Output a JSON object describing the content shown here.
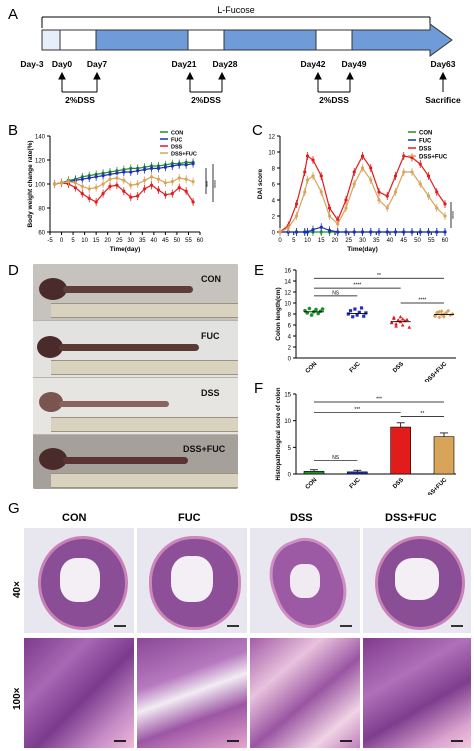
{
  "panel_labels": {
    "a": "A",
    "b": "B",
    "c": "C",
    "d": "D",
    "e": "E",
    "f": "F",
    "g": "G"
  },
  "timeline": {
    "treatment": "L-Fucose",
    "days": [
      "Day-3",
      "Day0",
      "Day7",
      "Day21",
      "Day28",
      "Day42",
      "Day49",
      "Day63"
    ],
    "dss": [
      "2%DSS",
      "2%DSS",
      "2%DSS"
    ],
    "end": "Sacrifice"
  },
  "legend": [
    "CON",
    "FUC",
    "DSS",
    "DSS+FUC"
  ],
  "colors": {
    "con": "#1f8f2b",
    "fuc": "#1f2fb8",
    "dss": "#e21b1b",
    "dssfuc": "#d7a45a",
    "bar_blue": "#6f9bd8"
  },
  "panel_d": {
    "labels": [
      "CON",
      "FUC",
      "DSS",
      "DSS+FUC"
    ]
  },
  "panel_g": {
    "columns": [
      "CON",
      "FUC",
      "DSS",
      "DSS+FUC"
    ],
    "rows": [
      "40×",
      "100×"
    ]
  },
  "chart_data": [
    {
      "type": "line",
      "xlabel": "Time(day)",
      "ylabel": "Body weight change rate(%)",
      "xlim": [
        -5,
        60
      ],
      "ylim": [
        60,
        140
      ],
      "xticks": [
        -5,
        0,
        5,
        10,
        15,
        20,
        25,
        30,
        35,
        40,
        45,
        50,
        55,
        60
      ],
      "yticks": [
        60,
        80,
        100,
        120,
        140
      ],
      "x": [
        -3,
        0,
        3,
        6,
        9,
        12,
        15,
        18,
        21,
        24,
        27,
        30,
        33,
        36,
        39,
        42,
        45,
        48,
        51,
        54,
        57
      ],
      "series": [
        {
          "name": "CON",
          "values": [
            100,
            101,
            103,
            104,
            106,
            107,
            108,
            109,
            110,
            111,
            112,
            113,
            113,
            114,
            115,
            115,
            116,
            117,
            117,
            118,
            118
          ]
        },
        {
          "name": "FUC",
          "values": [
            100,
            101,
            102,
            103,
            104,
            105,
            106,
            107,
            108,
            109,
            110,
            110,
            111,
            112,
            113,
            113,
            114,
            115,
            116,
            116,
            117
          ]
        },
        {
          "name": "DSS",
          "values": [
            100,
            101,
            100,
            97,
            92,
            88,
            85,
            92,
            98,
            99,
            94,
            89,
            90,
            96,
            99,
            95,
            91,
            92,
            97,
            94,
            85
          ]
        },
        {
          "name": "DSS+FUC",
          "values": [
            100,
            101,
            102,
            101,
            98,
            96,
            97,
            100,
            104,
            105,
            103,
            99,
            100,
            103,
            106,
            104,
            101,
            102,
            105,
            104,
            102
          ]
        }
      ],
      "annotations": [
        "***",
        "****"
      ]
    },
    {
      "type": "line",
      "xlabel": "Time(day)",
      "ylabel": "DAI score",
      "xlim": [
        0,
        60
      ],
      "ylim": [
        0,
        12
      ],
      "xticks": [
        0,
        5,
        10,
        15,
        20,
        25,
        30,
        35,
        40,
        45,
        50,
        55,
        60
      ],
      "yticks": [
        0,
        2,
        4,
        6,
        8,
        10,
        12
      ],
      "x": [
        0,
        3,
        6,
        9,
        10,
        12,
        15,
        18,
        21,
        24,
        27,
        30,
        33,
        36,
        39,
        42,
        45,
        48,
        51,
        54,
        57,
        60
      ],
      "series": [
        {
          "name": "CON",
          "values": [
            0,
            0,
            0,
            0,
            0,
            0,
            0,
            0,
            0,
            0,
            0,
            0,
            0,
            0,
            0,
            0,
            0,
            0,
            0,
            0,
            0,
            0
          ]
        },
        {
          "name": "FUC",
          "values": [
            0,
            0,
            0,
            0,
            0,
            0.3,
            0.6,
            0.2,
            0,
            0,
            0,
            0,
            0,
            0,
            0,
            0,
            0,
            0,
            0,
            0,
            0,
            0
          ]
        },
        {
          "name": "DSS",
          "values": [
            0,
            0.8,
            3.5,
            7.5,
            9.5,
            9,
            7,
            3,
            1.5,
            4,
            7.5,
            9.5,
            8,
            5,
            4.5,
            7,
            9.5,
            9.3,
            8.5,
            7,
            5,
            3.5
          ]
        },
        {
          "name": "DSS+FUC",
          "values": [
            0,
            0.5,
            2,
            5,
            6.5,
            7,
            5,
            2,
            1,
            3,
            6,
            8,
            6.5,
            4,
            3,
            5,
            7.5,
            7.5,
            6,
            4.5,
            3,
            2
          ]
        }
      ],
      "annotations": [
        "****"
      ]
    },
    {
      "type": "scatter",
      "xlabel": "",
      "ylabel": "Colon length(cm)",
      "categories": [
        "CON",
        "FUC",
        "DSS",
        "DSS+FUC"
      ],
      "ylim": [
        0,
        16
      ],
      "yticks": [
        0,
        2,
        4,
        6,
        8,
        10,
        12,
        14,
        16
      ],
      "means": [
        8.4,
        8.1,
        6.6,
        7.9
      ],
      "points": [
        [
          8.6,
          8.2,
          9.0,
          7.8,
          8.4,
          8.8,
          8.1,
          8.5,
          8.9
        ],
        [
          8.0,
          8.6,
          7.5,
          8.9,
          7.8,
          8.3,
          9.1,
          7.6,
          8.2
        ],
        [
          6.5,
          7.2,
          5.8,
          6.9,
          7.5,
          6.0,
          6.8,
          7.0,
          5.6,
          6.4,
          7.4,
          6.2,
          6.9,
          6.6,
          7.1
        ],
        [
          7.6,
          8.1,
          8.4,
          7.9,
          7.5,
          8.2,
          8.6,
          7.8,
          8.0,
          7.7,
          8.3,
          7.4,
          8.5,
          7.9,
          8.1
        ]
      ],
      "annotations": [
        "NS",
        "****",
        "**",
        "****"
      ]
    },
    {
      "type": "bar",
      "xlabel": "",
      "ylabel": "Histopathological score of colon",
      "categories": [
        "CON",
        "FUC",
        "DSS",
        "DSS+FUC"
      ],
      "values": [
        0.5,
        0.4,
        8.8,
        7.0
      ],
      "errors": [
        0.3,
        0.3,
        0.8,
        0.7
      ],
      "ylim": [
        0,
        15
      ],
      "yticks": [
        0,
        5,
        10,
        15
      ],
      "annotations": [
        "NS",
        "***",
        "***",
        "**"
      ]
    }
  ]
}
